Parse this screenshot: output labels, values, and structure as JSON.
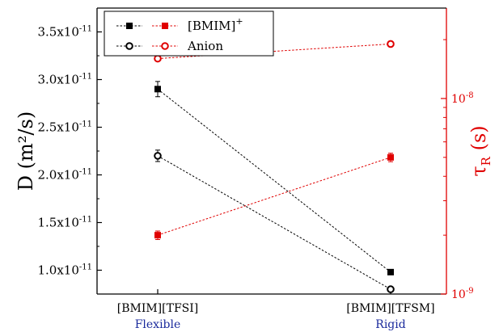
{
  "chart_data": {
    "type": "line",
    "categories": [
      "[BMIM][TFSI]",
      "[BMIM][TFSM]"
    ],
    "category_sublabels": [
      "Flexible",
      "Rigid"
    ],
    "left_axis": {
      "label_main": "D",
      "label_unit": "(m²/s)",
      "ylim": [
        7.5e-12,
        3.75e-11
      ],
      "ticks": [
        1e-11,
        1.5e-11,
        2e-11,
        2.5e-11,
        3e-11,
        3.5e-11
      ],
      "tick_mantissas": [
        "1.0",
        "1.5",
        "2.0",
        "2.5",
        "3.0",
        "3.5"
      ]
    },
    "right_axis": {
      "label_main": "τ",
      "label_sub": "R",
      "label_unit": "(s)",
      "scale": "log",
      "ylim": [
        1e-09,
        2.9e-08
      ],
      "ticks": [
        1e-09,
        1e-08
      ],
      "tick_exponents": [
        "-9",
        "-8"
      ],
      "color": "#e00000"
    },
    "series": [
      {
        "legend": "[BMIM]",
        "legend_sup": "+",
        "axis": "left",
        "marker": "square-filled",
        "color": "#000000",
        "values": [
          2.9e-11,
          9.8e-12
        ],
        "errors": [
          8e-13,
          2e-13
        ]
      },
      {
        "legend": "Anion",
        "axis": "left",
        "marker": "circle-open",
        "color": "#000000",
        "values": [
          2.2e-11,
          8e-12
        ],
        "errors": [
          6e-13,
          2e-13
        ]
      },
      {
        "axis": "right",
        "marker": "square-filled",
        "color": "#e00000",
        "values": [
          2e-09,
          5e-09
        ],
        "errors": [
          1e-10,
          2.5e-10
        ]
      },
      {
        "axis": "right",
        "marker": "circle-open",
        "color": "#e00000",
        "values": [
          1.6e-08,
          1.9e-08
        ],
        "errors": [
          5e-10,
          6e-10
        ]
      }
    ],
    "legend_position": "top-left",
    "grid": false
  }
}
